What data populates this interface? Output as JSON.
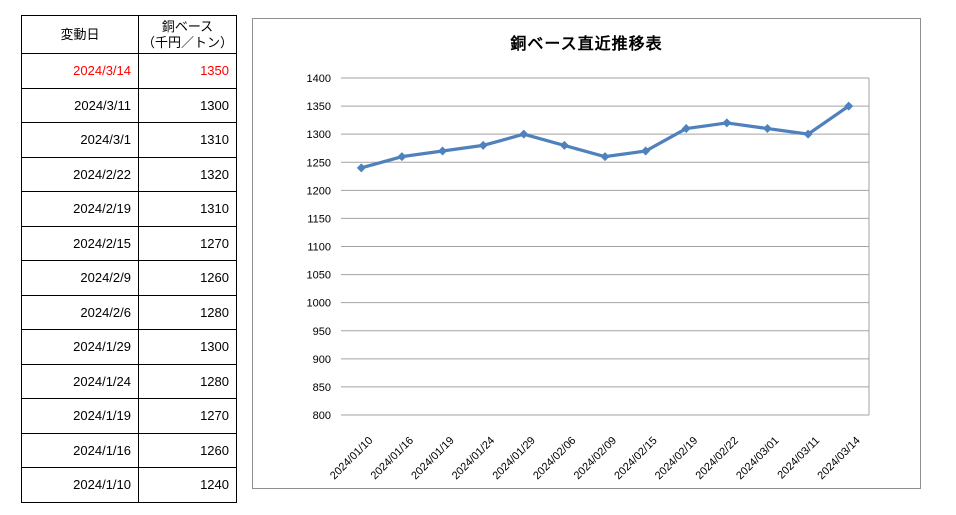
{
  "table": {
    "header": {
      "date_label": "変動日",
      "value_label_line1": "銅ベース",
      "value_label_line2": "（千円／トン）"
    },
    "highlight_color": "#FF0000",
    "rows": [
      {
        "date": "2024/3/14",
        "value": "1350",
        "highlight": true
      },
      {
        "date": "2024/3/11",
        "value": "1300",
        "highlight": false
      },
      {
        "date": "2024/3/1",
        "value": "1310",
        "highlight": false
      },
      {
        "date": "2024/2/22",
        "value": "1320",
        "highlight": false
      },
      {
        "date": "2024/2/19",
        "value": "1310",
        "highlight": false
      },
      {
        "date": "2024/2/15",
        "value": "1270",
        "highlight": false
      },
      {
        "date": "2024/2/9",
        "value": "1260",
        "highlight": false
      },
      {
        "date": "2024/2/6",
        "value": "1280",
        "highlight": false
      },
      {
        "date": "2024/1/29",
        "value": "1300",
        "highlight": false
      },
      {
        "date": "2024/1/24",
        "value": "1280",
        "highlight": false
      },
      {
        "date": "2024/1/19",
        "value": "1270",
        "highlight": false
      },
      {
        "date": "2024/1/16",
        "value": "1260",
        "highlight": false
      },
      {
        "date": "2024/1/10",
        "value": "1240",
        "highlight": false
      }
    ]
  },
  "chart_data": {
    "type": "line",
    "title": "銅ベース直近推移表",
    "x": [
      "2024/01/10",
      "2024/01/16",
      "2024/01/19",
      "2024/01/24",
      "2024/01/29",
      "2024/02/06",
      "2024/02/09",
      "2024/02/15",
      "2024/02/19",
      "2024/02/22",
      "2024/03/01",
      "2024/03/11",
      "2024/03/14"
    ],
    "series": [
      {
        "name": "銅ベース",
        "values": [
          1240,
          1260,
          1270,
          1280,
          1300,
          1280,
          1260,
          1270,
          1310,
          1320,
          1310,
          1300,
          1350
        ]
      }
    ],
    "xlabel": "",
    "ylabel": "",
    "ylim": [
      800,
      1400
    ],
    "ytick_step": 50,
    "grid": true,
    "legend": "none",
    "line_color": "#4F81BD",
    "marker": "diamond"
  }
}
